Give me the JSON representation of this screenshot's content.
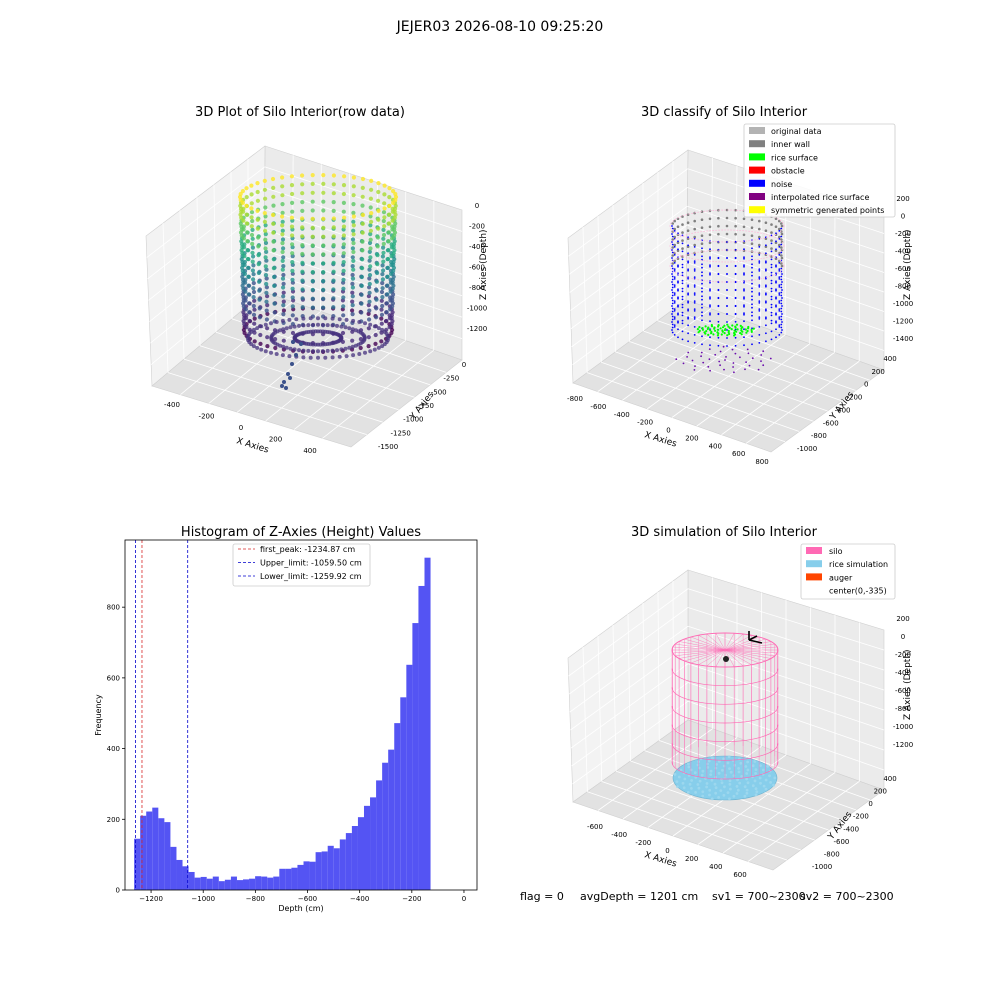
{
  "figure_title": "JEJER03 2026-08-10 09:25:20",
  "status": {
    "flag": "flag = 0",
    "avg_depth": "avgDepth = 1201 cm",
    "sv1": "sv1 = 700~2300",
    "sv2": "sv2 = 700~2300"
  },
  "colors": {
    "hist_bar": "#4b4bf2",
    "first_peak": "#d62728",
    "limit": "#0000cc",
    "original": "#b3b3b3",
    "inner_wall": "#808080",
    "rice_surface": "#00ff00",
    "obstacle": "#ff0000",
    "noise": "#0000ff",
    "interpolated": "#800080",
    "symmetric": "#ffff00",
    "silo": "#ff69b4",
    "rice_sim": "#87ceeb",
    "auger": "#ff4500"
  },
  "chart_data": [
    {
      "type": "scatter",
      "subtype": "3d",
      "title": "3D Plot of Silo Interior(row data)",
      "xlabel": "X Axies",
      "ylabel": "Y Axies",
      "zlabel": "Z Axies (Depth)",
      "xticks": [
        "-400",
        "-200",
        "0",
        "200",
        "400"
      ],
      "yticks": [
        "0",
        "-250",
        "-500",
        "-750",
        "-1000",
        "-1250",
        "-1500"
      ],
      "zticks": [
        "0",
        "-200",
        "-400",
        "-600",
        "-800",
        "-1000",
        "-1200"
      ],
      "colormap": "viridis (color by depth)"
    },
    {
      "type": "scatter",
      "subtype": "3d",
      "title": "3D classify of Silo Interior",
      "xlabel": "X Axies",
      "ylabel": "Y Axies",
      "zlabel": "Z Axies (Depth)",
      "xticks": [
        "-800",
        "-600",
        "-400",
        "-200",
        "0",
        "200",
        "400",
        "600",
        "800"
      ],
      "yticks": [
        "400",
        "200",
        "0",
        "-200",
        "-400",
        "-600",
        "-800",
        "-1000"
      ],
      "zticks": [
        "200",
        "0",
        "-200",
        "-400",
        "-600",
        "-800",
        "-1000",
        "-1200",
        "-1400"
      ],
      "legend": [
        "original data",
        "inner wall",
        "rice surface",
        "obstacle",
        "noise",
        "interpolated rice surface",
        "symmetric generated points"
      ],
      "legend_position": "top-right"
    },
    {
      "type": "bar",
      "subtype": "histogram",
      "title": "Histogram of Z-Axies (Height) Values",
      "xlabel": "Depth (cm)",
      "ylabel": "Frequency",
      "xlim": [
        -1300,
        50
      ],
      "ylim": [
        0,
        990
      ],
      "xticks": [
        -1200,
        -1000,
        -800,
        -600,
        -400,
        -200,
        0
      ],
      "yticks": [
        0,
        200,
        400,
        600,
        800
      ],
      "bin_width": 23.2,
      "bin_start": -1265,
      "values": [
        145,
        210,
        222,
        233,
        203,
        192,
        122,
        85,
        67,
        51,
        35,
        37,
        32,
        38,
        25,
        29,
        38,
        28,
        30,
        32,
        39,
        38,
        35,
        38,
        60,
        60,
        63,
        71,
        81,
        80,
        107,
        109,
        125,
        118,
        143,
        161,
        181,
        206,
        238,
        262,
        310,
        360,
        397,
        472,
        545,
        637,
        755,
        860,
        940
      ],
      "lines": [
        {
          "label": "first_peak: -1234.87 cm",
          "x": -1234.87,
          "style": "dashed",
          "color_key": "first_peak"
        },
        {
          "label": "Upper_limit: -1059.50 cm",
          "x": -1059.5,
          "style": "dashed",
          "color_key": "limit"
        },
        {
          "label": "Lower_limit: -1259.92 cm",
          "x": -1259.92,
          "style": "dashed",
          "color_key": "limit"
        }
      ],
      "legend_position": "top-center"
    },
    {
      "type": "scatter",
      "subtype": "3d-surface",
      "title": "3D simulation of Silo Interior",
      "xlabel": "X Axies",
      "ylabel": "Y Axies",
      "zlabel": "Z Axies (Depth)",
      "xticks": [
        "-600",
        "-400",
        "-200",
        "0",
        "200",
        "400",
        "600"
      ],
      "yticks": [
        "400",
        "200",
        "0",
        "-200",
        "-400",
        "-600",
        "-800",
        "-1000"
      ],
      "zticks": [
        "200",
        "0",
        "-200",
        "-400",
        "-600",
        "-800",
        "-1000",
        "-1200"
      ],
      "legend": [
        "silo",
        "rice simulation",
        "auger",
        "center(0,-335)"
      ],
      "legend_position": "top-right"
    }
  ]
}
